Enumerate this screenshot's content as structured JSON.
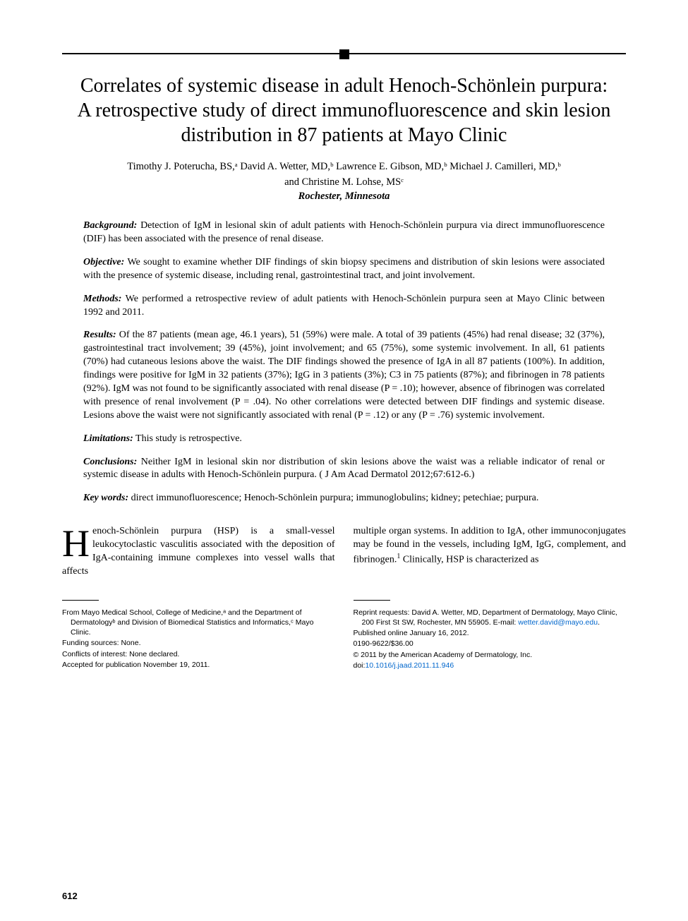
{
  "title": "Correlates of systemic disease in adult Henoch-Schönlein purpura: A retrospective study of direct immunofluorescence and skin lesion distribution in 87 patients at Mayo Clinic",
  "authors_line1": "Timothy J. Poterucha, BS,ᵃ David A. Wetter, MD,ᵇ Lawrence E. Gibson, MD,ᵇ Michael J. Camilleri, MD,ᵇ",
  "authors_line2": "and Christine M. Lohse, MSᶜ",
  "location": "Rochester, Minnesota",
  "abstract": {
    "background": {
      "label": "Background:",
      "text": " Detection of IgM in lesional skin of adult patients with Henoch-Schönlein purpura via direct immunofluorescence (DIF) has been associated with the presence of renal disease."
    },
    "objective": {
      "label": "Objective:",
      "text": " We sought to examine whether DIF findings of skin biopsy specimens and distribution of skin lesions were associated with the presence of systemic disease, including renal, gastrointestinal tract, and joint involvement."
    },
    "methods": {
      "label": "Methods:",
      "text": " We performed a retrospective review of adult patients with Henoch-Schönlein purpura seen at Mayo Clinic between 1992 and 2011."
    },
    "results": {
      "label": "Results:",
      "text": " Of the 87 patients (mean age, 46.1 years), 51 (59%) were male. A total of 39 patients (45%) had renal disease; 32 (37%), gastrointestinal tract involvement; 39 (45%), joint involvement; and 65 (75%), some systemic involvement. In all, 61 patients (70%) had cutaneous lesions above the waist. The DIF findings showed the presence of IgA in all 87 patients (100%). In addition, findings were positive for IgM in 32 patients (37%); IgG in 3 patients (3%); C3 in 75 patients (87%); and fibrinogen in 78 patients (92%). IgM was not found to be significantly associated with renal disease (P = .10); however, absence of fibrinogen was correlated with presence of renal involvement (P = .04). No other correlations were detected between DIF findings and systemic disease. Lesions above the waist were not significantly associated with renal (P = .12) or any (P = .76) systemic involvement."
    },
    "limitations": {
      "label": "Limitations:",
      "text": " This study is retrospective."
    },
    "conclusions": {
      "label": "Conclusions:",
      "text": " Neither IgM in lesional skin nor distribution of skin lesions above the waist was a reliable indicator of renal or systemic disease in adults with Henoch-Schönlein purpura. ( J Am Acad Dermatol 2012;67:612-6.)"
    },
    "keywords": {
      "label": "Key words:",
      "text": " direct immunofluorescence; Henoch-Schönlein purpura; immunoglobulins; kidney; petechiae; purpura."
    }
  },
  "body": {
    "dropcap": "H",
    "col1": "enoch-Schönlein purpura (HSP) is a small-vessel leukocytoclastic vasculitis associated with the deposition of IgA-containing immune complexes into vessel walls that affects",
    "col2_a": "multiple organ systems. In addition to IgA, other immunoconjugates may be found in the vessels, including IgM, IgG, complement, and fibrinogen.",
    "col2_ref": "1",
    "col2_b": " Clinically, HSP is characterized as"
  },
  "footer": {
    "left": {
      "affil": "From Mayo Medical School, College of Medicine,ᵃ and the Department of Dermatologyᵇ and Division of Biomedical Statistics and Informatics,ᶜ Mayo Clinic.",
      "funding": "Funding sources: None.",
      "conflicts": "Conflicts of interest: None declared.",
      "accepted": "Accepted for publication November 19, 2011."
    },
    "right": {
      "reprint_a": "Reprint requests: David A. Wetter, MD, Department of Dermatology, Mayo Clinic, 200 First St SW, Rochester, MN 55905. E-mail: ",
      "email": "wetter.david@mayo.edu",
      "reprint_b": ".",
      "published": "Published online January 16, 2012.",
      "issn": "0190-9622/$36.00",
      "copyright": "© 2011 by the American Academy of Dermatology, Inc.",
      "doi_label": "doi:",
      "doi": "10.1016/j.jaad.2011.11.946"
    }
  },
  "page_number": "612",
  "colors": {
    "text": "#000000",
    "link": "#0066cc",
    "background": "#ffffff"
  },
  "typography": {
    "title_fontsize": 28,
    "body_fontsize": 14,
    "footer_fontsize": 10.5,
    "font_family_body": "Garamond, Georgia, serif",
    "font_family_footer": "Arial, Helvetica, sans-serif"
  }
}
